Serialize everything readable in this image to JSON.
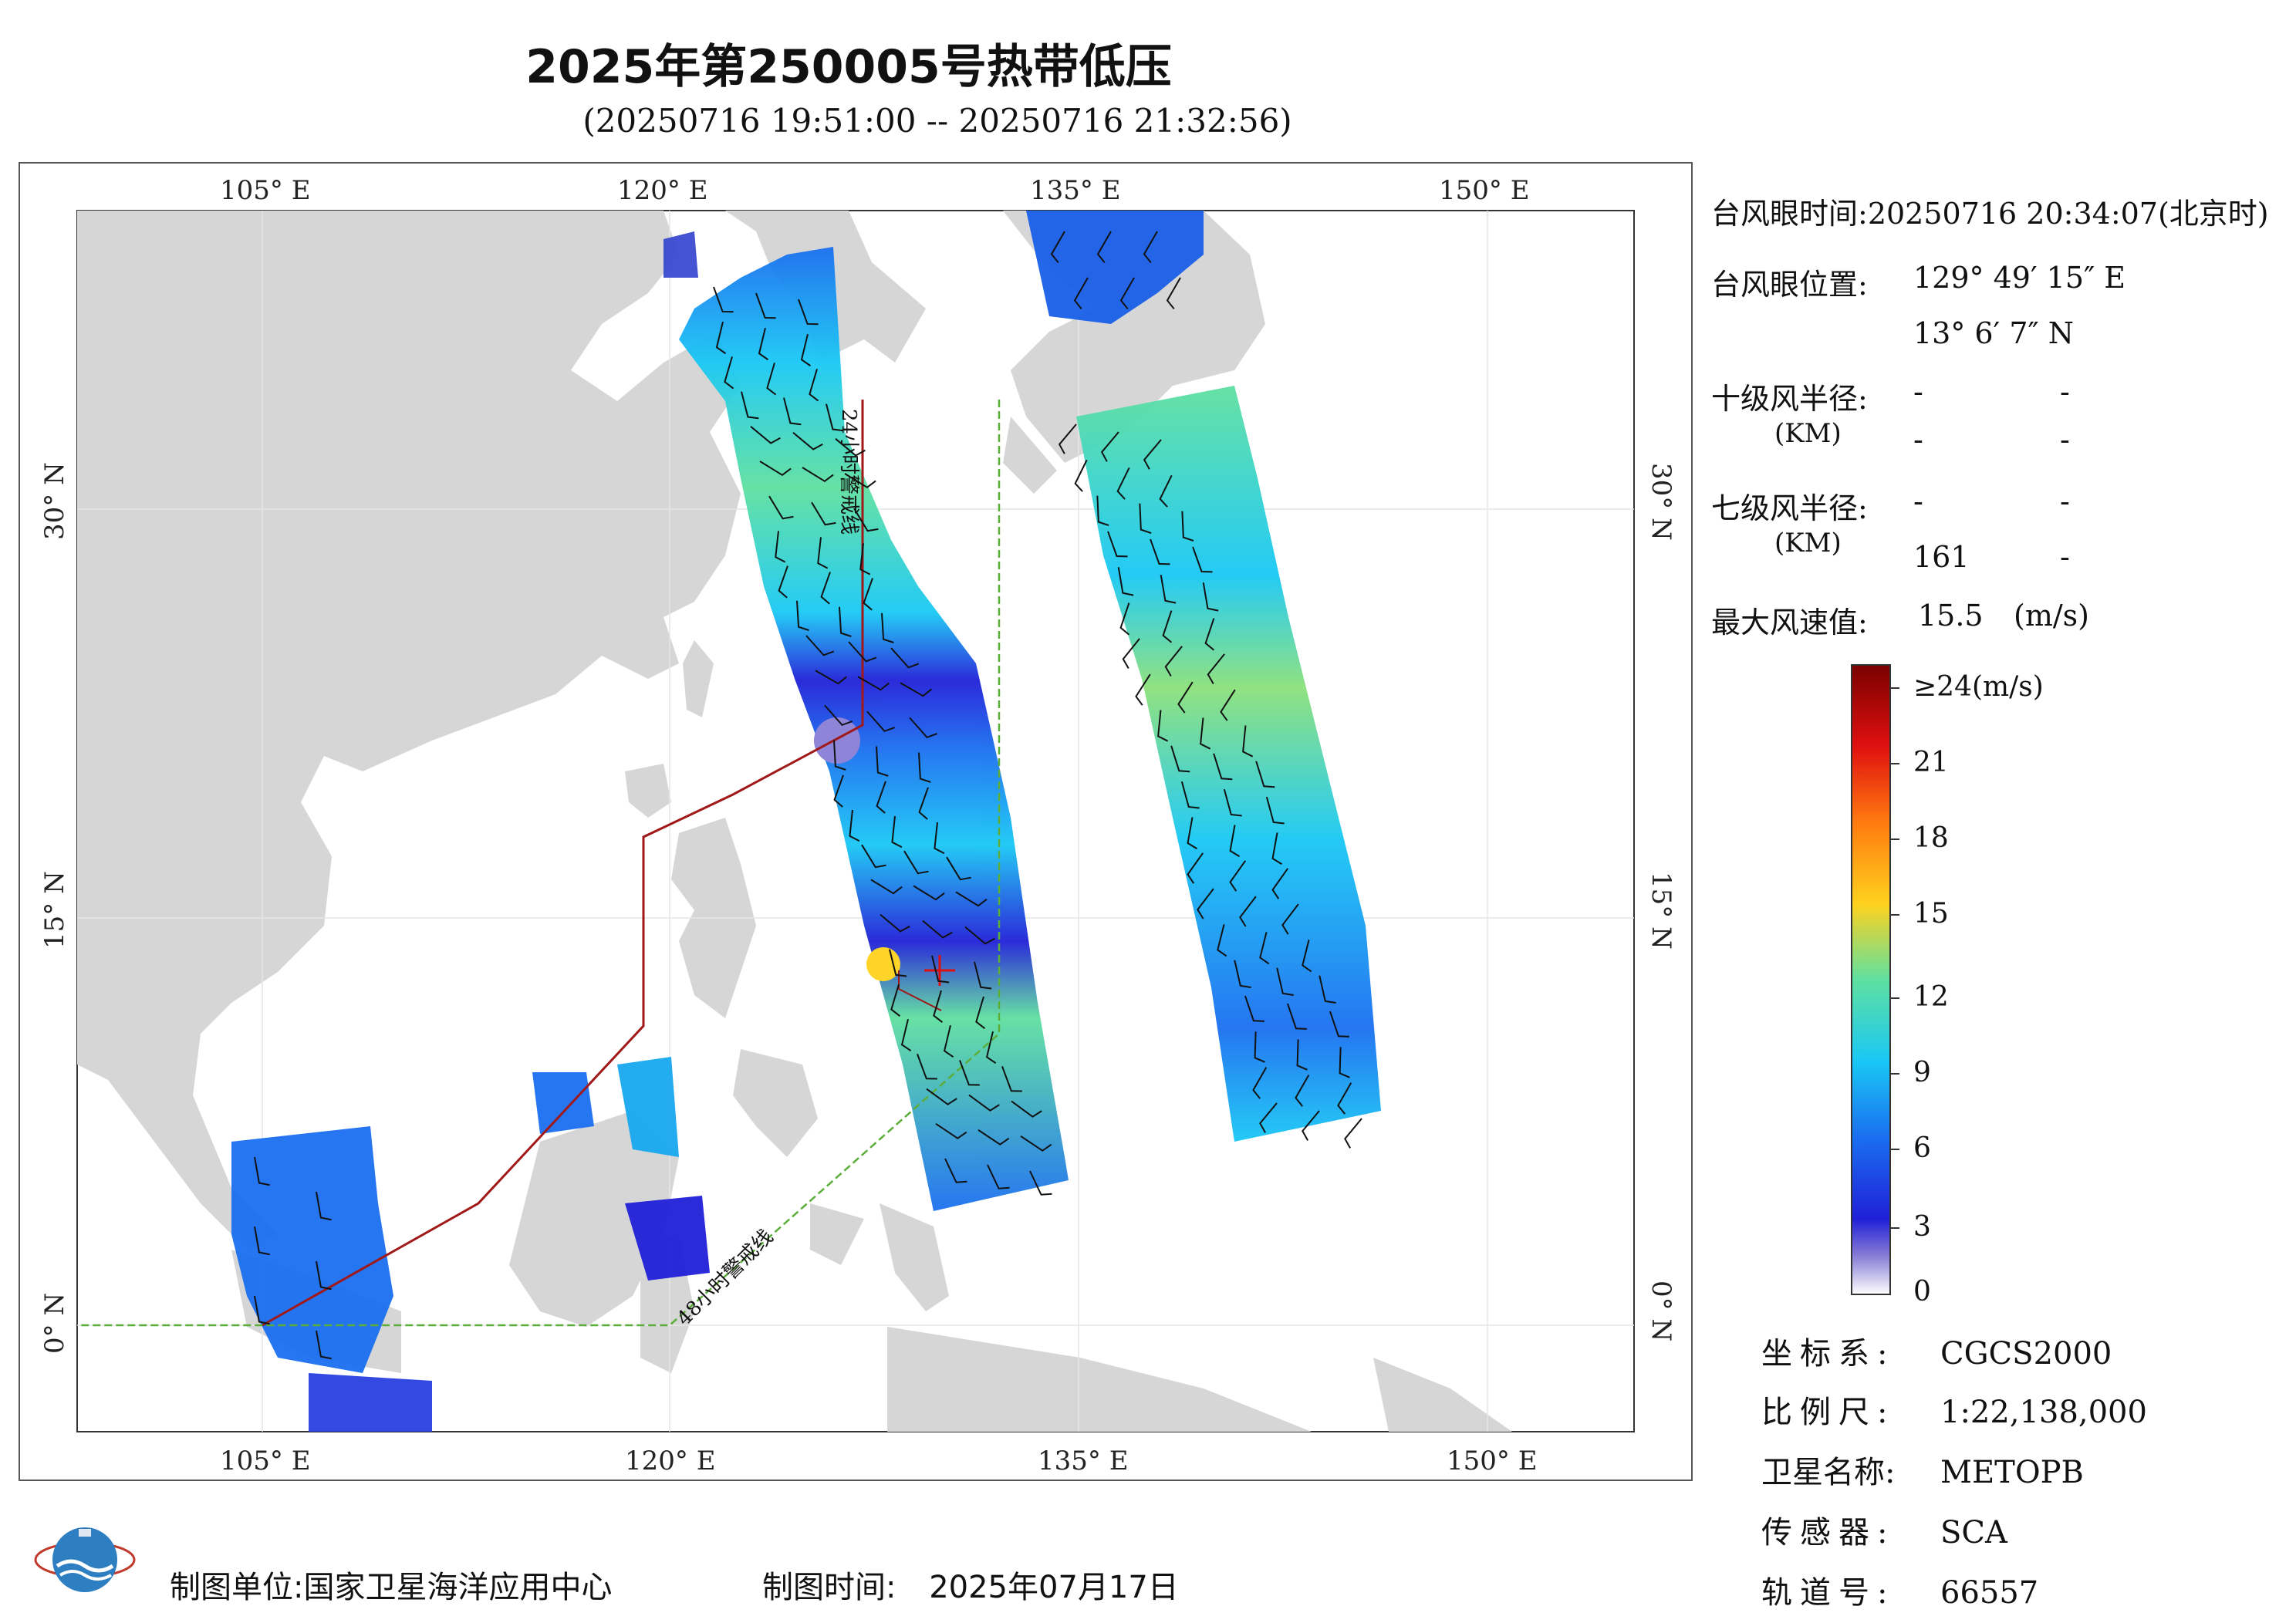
{
  "title": "2025年第250005号热带低压",
  "subtitle": "(20250716 19:51:00 -- 20250716 21:32:56)",
  "map": {
    "lon_ticks": [
      "105° E",
      "120° E",
      "135° E",
      "150° E"
    ],
    "lat_ticks": [
      "30° N",
      "15° N",
      "0° N"
    ],
    "line_24h": "24小时警戒线",
    "line_48h": "48小时警戒线",
    "colors": {
      "land": "#d6d6d6",
      "sea": "#ffffff",
      "line24": "#a01818",
      "line48": "#5cae3a"
    }
  },
  "info": {
    "eye_time_label": "台风眼时间:",
    "eye_time_value": "20250716 20:34:07(北京时)",
    "eye_pos_label": "台风眼位置:",
    "eye_lon": "129° 49′ 15″ E",
    "eye_lat": "13° 6′ 7″ N",
    "r10_label": "十级风半径:",
    "r10_unit": "(KM)",
    "r10_values": [
      "-",
      "-",
      "-",
      "-"
    ],
    "r7_label": "七级风半径:",
    "r7_unit": "(KM)",
    "r7_values": [
      "-",
      "-",
      "161",
      "-"
    ],
    "max_wind_label": "最大风速值:",
    "max_wind_value": "15.5",
    "max_wind_unit": "(m/s)"
  },
  "colorbar": {
    "labels": [
      "≥24(m/s)",
      "21",
      "18",
      "15",
      "12",
      "9",
      "6",
      "3",
      "0"
    ],
    "colors": [
      "#ffffff",
      "#8a7fd6",
      "#2020d8",
      "#1a6ff0",
      "#19c8f5",
      "#5fe0a0",
      "#c8f03c",
      "#ffd21e",
      "#ff7a10",
      "#e01010",
      "#7a0000"
    ]
  },
  "meta": {
    "coord_label": "坐标系:",
    "coord_value": "CGCS2000",
    "scale_label": "比例尺:",
    "scale_value": "1:22,138,000",
    "sat_label": "卫星名称:",
    "sat_value": "METOPB",
    "sensor_label": "传感器:",
    "sensor_value": "SCA",
    "orbit_label": "轨道号:",
    "orbit_value": "66557"
  },
  "footer": {
    "unit_label": "制图单位:",
    "unit_value": "国家卫星海洋应用中心",
    "time_label": "制图时间:",
    "time_value": "2025年07月17日"
  }
}
